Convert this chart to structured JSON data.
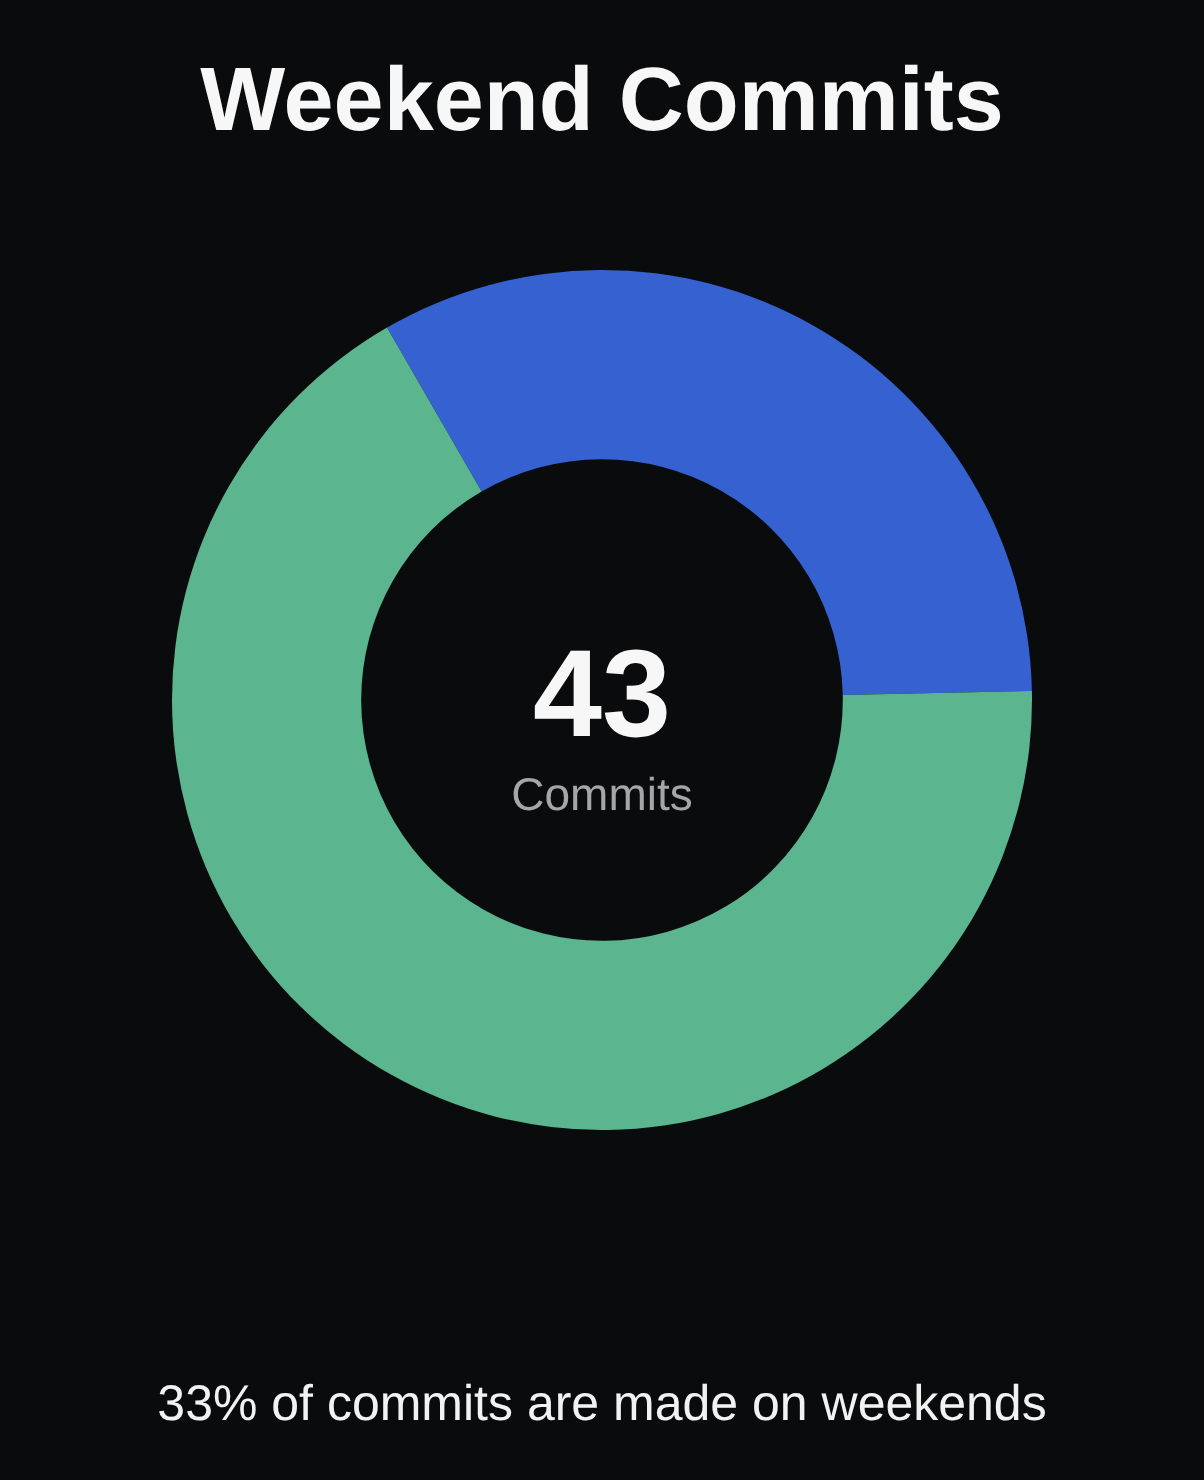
{
  "chart_data": {
    "type": "donut",
    "title": "Weekend Commits",
    "categories": [
      null,
      null
    ],
    "values": [
      33,
      67
    ],
    "colors": [
      "#3662d1",
      "#5bb58f"
    ],
    "legend": false,
    "annotations": [
      "43",
      "Commits",
      "33% of commits are made on weekends"
    ]
  }
}
